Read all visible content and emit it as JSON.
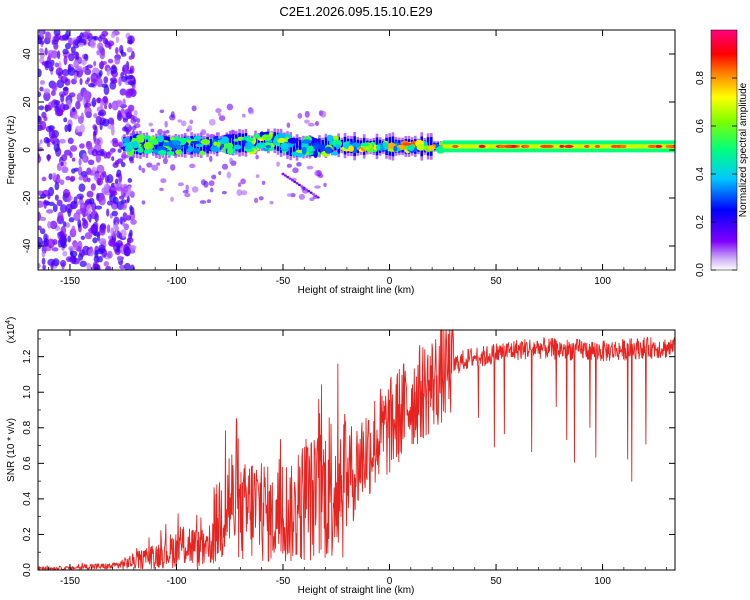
{
  "title": "C2E1.2026.095.15.10.E29",
  "chart_data": [
    {
      "type": "heatmap",
      "name": "spectrogram",
      "xlabel": "Height of straight line (km)",
      "ylabel": "Frequency (Hz)",
      "xlim": [
        -165,
        134
      ],
      "ylim": [
        -50,
        50
      ],
      "xticks": [
        -150,
        -100,
        -50,
        0,
        50,
        100
      ],
      "yticks": [
        -40,
        -20,
        0,
        20,
        40
      ],
      "colorbar": {
        "label": "Normalized spectral amplitude",
        "range": [
          0.0,
          1.0
        ],
        "ticks": [
          0.0,
          0.2,
          0.4,
          0.6,
          0.8
        ],
        "colormap": [
          "#ffffff",
          "#7f00ff",
          "#0000ff",
          "#00c8ff",
          "#00ff80",
          "#80ff00",
          "#ffff00",
          "#ff8000",
          "#ff0000",
          "#ff0080"
        ]
      },
      "noise_region_x": [
        -165,
        -120
      ],
      "carrier": [
        {
          "x": -125,
          "freq": 2.5,
          "amp": 0.45
        },
        {
          "x": -115,
          "freq": 2.0,
          "amp": 0.5
        },
        {
          "x": -105,
          "freq": 1.5,
          "amp": 0.55
        },
        {
          "x": -95,
          "freq": 2.0,
          "amp": 0.5
        },
        {
          "x": -85,
          "freq": 2.0,
          "amp": 0.5
        },
        {
          "x": -75,
          "freq": 3.0,
          "amp": 0.5
        },
        {
          "x": -65,
          "freq": 3.0,
          "amp": 0.55
        },
        {
          "x": -55,
          "freq": 4.0,
          "amp": 0.6
        },
        {
          "x": -45,
          "freq": 1.0,
          "amp": 0.55
        },
        {
          "x": -35,
          "freq": 1.5,
          "amp": 0.5
        },
        {
          "x": -25,
          "freq": 2.0,
          "amp": 0.6
        },
        {
          "x": -15,
          "freq": 1.5,
          "amp": 0.7
        },
        {
          "x": -5,
          "freq": 1.5,
          "amp": 0.75
        },
        {
          "x": 5,
          "freq": 1.5,
          "amp": 0.75
        },
        {
          "x": 15,
          "freq": 1.5,
          "amp": 0.7
        },
        {
          "x": 25,
          "freq": 1.5,
          "amp": 0.7
        },
        {
          "x": 50,
          "freq": 1.5,
          "amp": 0.6
        },
        {
          "x": 75,
          "freq": 1.5,
          "amp": 0.65
        },
        {
          "x": 100,
          "freq": 1.5,
          "amp": 0.7
        },
        {
          "x": 115,
          "freq": 1.5,
          "amp": 0.75
        },
        {
          "x": 130,
          "freq": 1.5,
          "amp": 0.75
        }
      ]
    },
    {
      "type": "line",
      "name": "snr",
      "xlabel": "Height of straight line (km)",
      "ylabel": "SNR (10 * v/v)",
      "yscale_label": "(x10",
      "yscale_exponent": "4",
      "xlim": [
        -165,
        134
      ],
      "ylim": [
        0,
        1.35
      ],
      "xticks": [
        -150,
        -100,
        -50,
        0,
        50,
        100
      ],
      "yticks": [
        0.0,
        0.2,
        0.4,
        0.6,
        0.8,
        1.0,
        1.2
      ],
      "color": "#e8221e",
      "series": [
        {
          "name": "SNR (x10^4)",
          "x": [
            -165,
            -150,
            -140,
            -130,
            -120,
            -110,
            -100,
            -95,
            -90,
            -85,
            -80,
            -75,
            -70,
            -65,
            -60,
            -55,
            -50,
            -45,
            -40,
            -35,
            -30,
            -25,
            -20,
            -16,
            -14,
            -10,
            -5,
            0,
            5,
            10,
            15,
            20,
            25,
            30,
            35,
            40,
            45,
            50,
            60,
            70,
            80,
            90,
            100,
            110,
            120,
            134
          ],
          "y": [
            0.01,
            0.01,
            0.02,
            0.02,
            0.05,
            0.08,
            0.12,
            0.15,
            0.12,
            0.1,
            0.3,
            0.4,
            0.3,
            0.35,
            0.35,
            0.28,
            0.35,
            0.3,
            0.4,
            0.4,
            0.45,
            0.5,
            0.55,
            0.55,
            0.62,
            0.68,
            0.75,
            0.8,
            0.88,
            0.95,
            1.0,
            1.05,
            1.1,
            1.15,
            1.18,
            1.2,
            1.2,
            1.22,
            1.24,
            1.25,
            1.24,
            1.24,
            1.23,
            1.24,
            1.25,
            1.25
          ]
        }
      ]
    }
  ]
}
